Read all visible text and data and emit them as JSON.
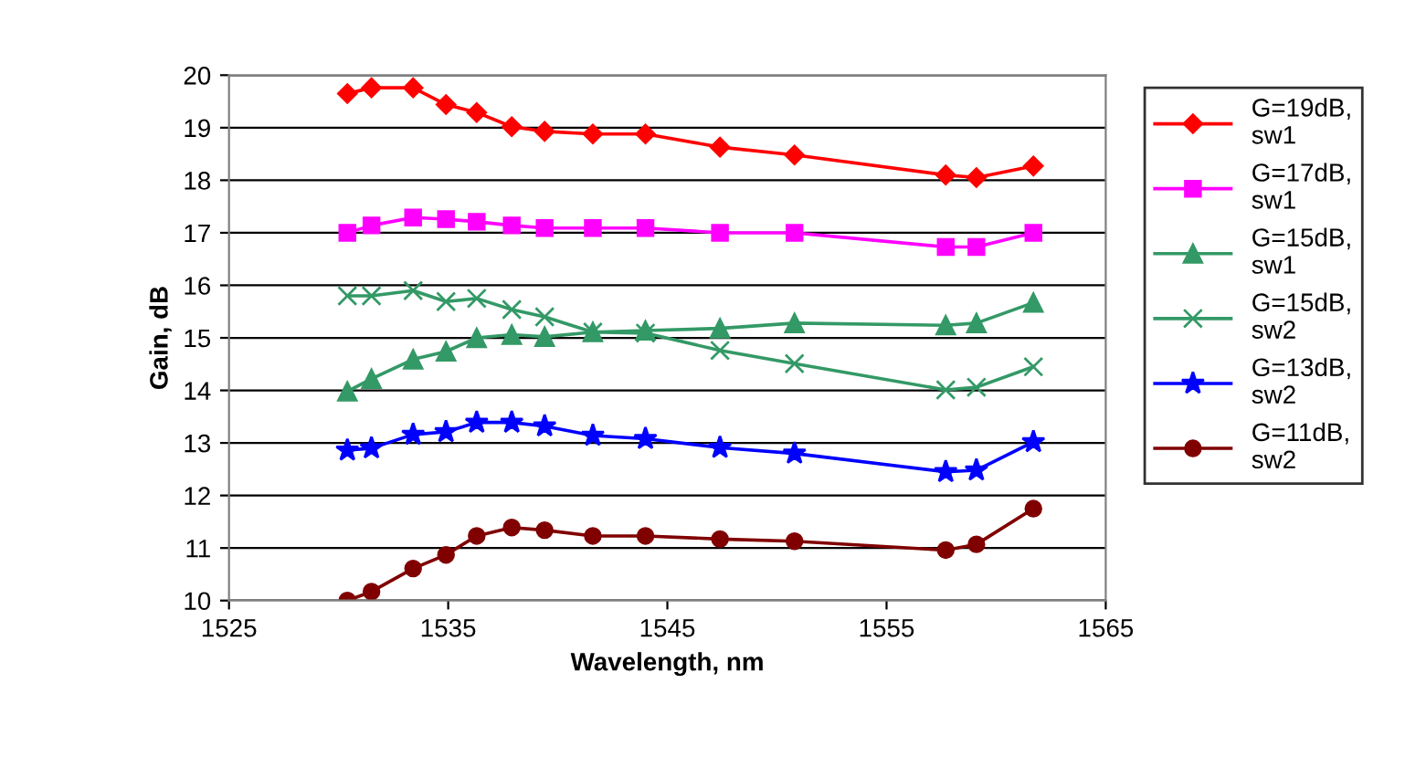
{
  "chart_data": {
    "type": "line",
    "xlabel": "Wavelength, nm",
    "ylabel": "Gain, dB",
    "x": [
      1530.4,
      1531.5,
      1533.4,
      1534.9,
      1536.3,
      1537.9,
      1539.4,
      1541.6,
      1544.0,
      1547.4,
      1550.8,
      1557.7,
      1559.1,
      1561.7
    ],
    "series": [
      {
        "name": "G=19dB, sw1",
        "color": "#ff0000",
        "marker": "diamond",
        "values": [
          19.65,
          19.76,
          19.76,
          19.44,
          19.29,
          19.02,
          18.93,
          18.88,
          18.88,
          18.63,
          18.48,
          18.1,
          18.05,
          18.27
        ]
      },
      {
        "name": "G=17dB, sw1",
        "color": "#ff00ff",
        "marker": "square",
        "values": [
          17.0,
          17.14,
          17.29,
          17.26,
          17.21,
          17.14,
          17.09,
          17.09,
          17.09,
          17.0,
          17.0,
          16.73,
          16.73,
          17.0
        ]
      },
      {
        "name": "G=15dB, sw1",
        "color": "#339966",
        "marker": "triangle",
        "values": [
          13.98,
          14.22,
          14.59,
          14.74,
          15.0,
          15.06,
          15.02,
          15.11,
          15.14,
          15.18,
          15.28,
          15.24,
          15.28,
          15.67
        ]
      },
      {
        "name": "G=15dB, sw2",
        "color": "#339966",
        "marker": "cross",
        "values": [
          15.8,
          15.8,
          15.9,
          15.69,
          15.75,
          15.54,
          15.4,
          15.11,
          15.09,
          14.76,
          14.51,
          14.01,
          14.06,
          14.45
        ]
      },
      {
        "name": "G=13dB, sw2",
        "color": "#0000ff",
        "marker": "star",
        "values": [
          12.86,
          12.9,
          13.16,
          13.21,
          13.39,
          13.39,
          13.32,
          13.14,
          13.08,
          12.91,
          12.8,
          12.45,
          12.48,
          13.02
        ]
      },
      {
        "name": "G=11dB, sw2",
        "color": "#800000",
        "marker": "circle",
        "values": [
          10.0,
          10.17,
          10.61,
          10.87,
          11.23,
          11.39,
          11.34,
          11.23,
          11.23,
          11.17,
          11.13,
          10.96,
          11.07,
          11.75
        ]
      }
    ],
    "xlim": [
      1525,
      1565
    ],
    "xticks": [
      1525,
      1535,
      1545,
      1555,
      1565
    ],
    "ylim": [
      10,
      20
    ],
    "yticks": [
      10,
      11,
      12,
      13,
      14,
      15,
      16,
      17,
      18,
      19,
      20
    ],
    "grid": "y",
    "legend": "right",
    "line_style": "solid"
  }
}
